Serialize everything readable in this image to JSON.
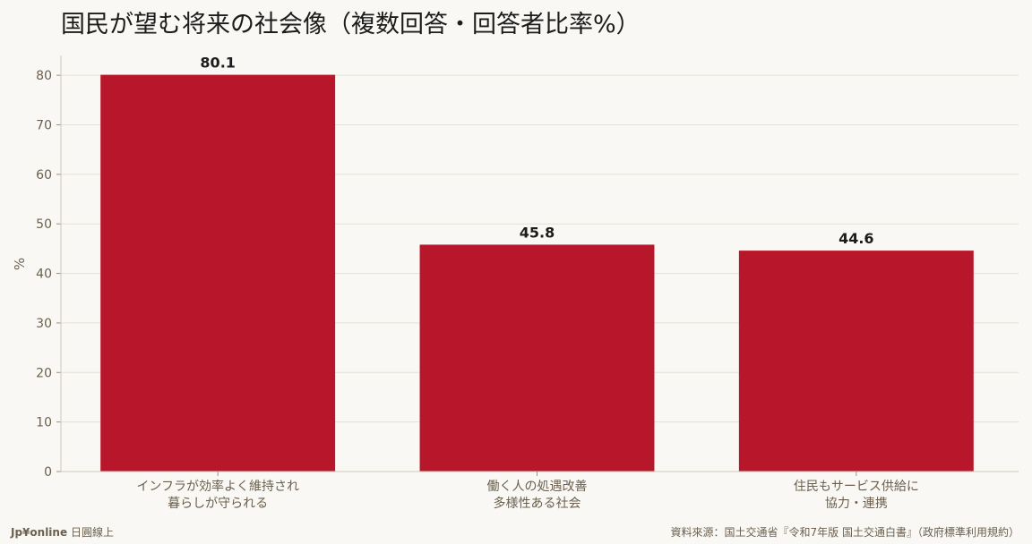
{
  "title": "国民が望む将来の社会像（複数回答・回答者比率%）",
  "colors": {
    "bar": "#b8162b",
    "background": "#f9f8f4",
    "grid": "#e4e0d8",
    "tick_text": "#6b5f4e",
    "value_text": "#1c1c1c"
  },
  "chart_data": {
    "type": "bar",
    "title": "国民が望む将来の社会像（複数回答・回答者比率%）",
    "xlabel": "",
    "ylabel": "%",
    "ylim": [
      0,
      84
    ],
    "yticks": [
      0,
      10,
      20,
      30,
      40,
      50,
      60,
      70,
      80
    ],
    "grid": true,
    "categories": [
      [
        "インフラが効率よく維持され",
        "暮らしが守られる"
      ],
      [
        "働く人の処遇改善",
        "多様性ある社会"
      ],
      [
        "住民もサービス供給に",
        "協力・連携"
      ]
    ],
    "values": [
      80.1,
      45.8,
      44.6
    ],
    "value_labels": [
      "80.1",
      "45.8",
      "44.6"
    ]
  },
  "footer": {
    "brand": "Jp¥online",
    "brand_suffix": "日圓線上",
    "source": "資料來源：国土交通省『令和7年版 国土交通白書』（政府標準利用規約）"
  }
}
